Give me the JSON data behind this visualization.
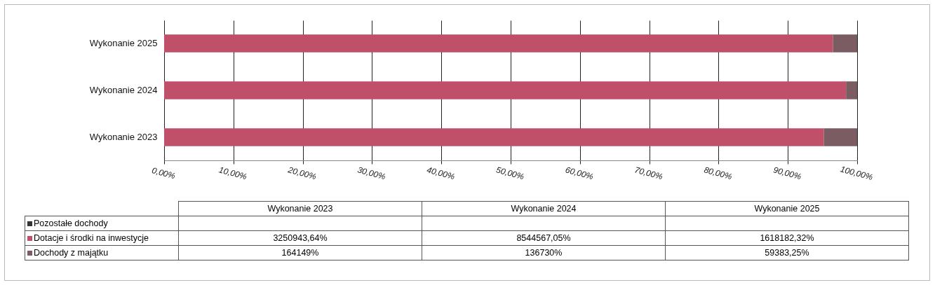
{
  "chart_data": {
    "type": "bar",
    "orientation": "horizontal",
    "stacked": true,
    "categories": [
      "Wykonanie 2025",
      "Wykonanie 2024",
      "Wykonanie 2023"
    ],
    "series": [
      {
        "name": "Dotacje i środki na inwestycje",
        "color": "#c0506a",
        "values": [
          96.5,
          98.4,
          95.2
        ]
      },
      {
        "name": "Dochody z majątku",
        "color": "#7a5c62",
        "values": [
          3.5,
          1.6,
          4.8
        ]
      },
      {
        "name": "Pozostałe dochody",
        "color": "#333333",
        "values": [
          null,
          null,
          null
        ]
      }
    ],
    "annotations": [
      "3250943,64%",
      "8544567,05%",
      "1618182,32%",
      "164149%",
      "136730%",
      "59383,25%"
    ],
    "xlim": [
      0,
      100
    ],
    "xticks": [
      {
        "value": 0,
        "label": "0,00%"
      },
      {
        "value": 10,
        "label": "10,00%"
      },
      {
        "value": 20,
        "label": "20,00%"
      },
      {
        "value": 30,
        "label": "30,00%"
      },
      {
        "value": 40,
        "label": "40,00%"
      },
      {
        "value": 50,
        "label": "50,00%"
      },
      {
        "value": 60,
        "label": "60,00%"
      },
      {
        "value": 70,
        "label": "70,00%"
      },
      {
        "value": 80,
        "label": "80,00%"
      },
      {
        "value": 90,
        "label": "90,00%"
      },
      {
        "value": 100,
        "label": "100,00%"
      }
    ],
    "grid": "x",
    "legend": "bottom"
  }
}
